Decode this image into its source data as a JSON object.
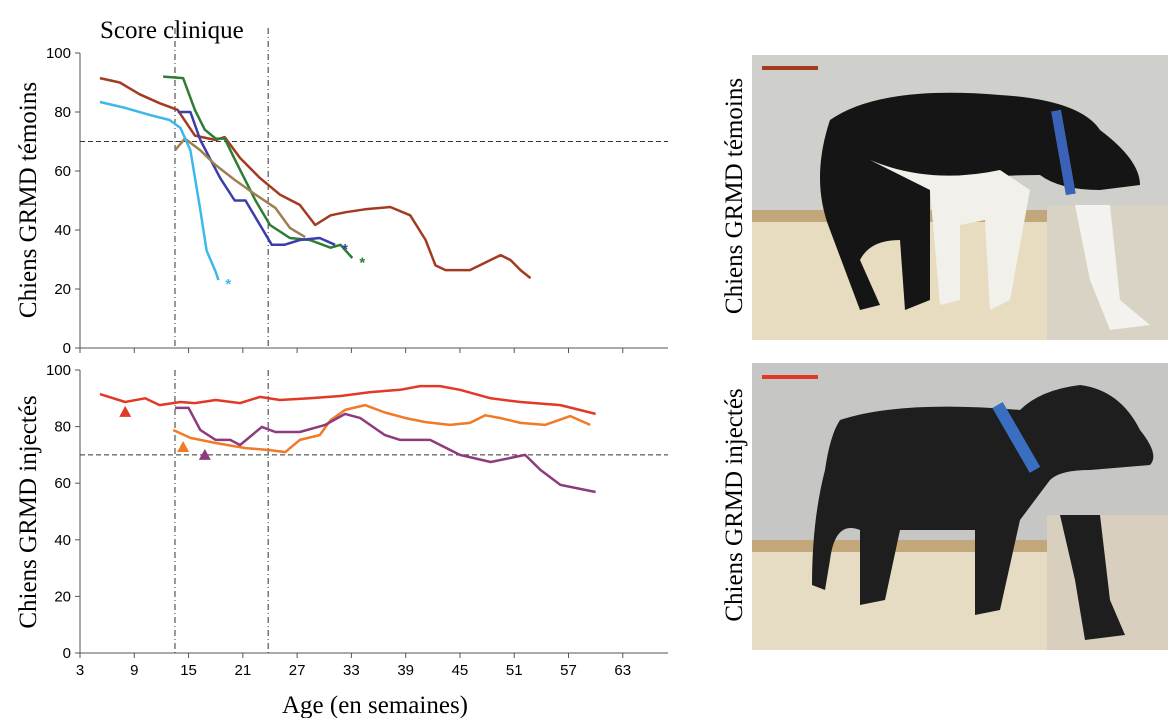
{
  "chart_data": [
    {
      "type": "line",
      "title": "Score clinique",
      "y_label": "Chiens GRMD témoins",
      "xlim": [
        3,
        68
      ],
      "ylim": [
        0,
        100
      ],
      "yticks": [
        0,
        20,
        40,
        60,
        80,
        100
      ],
      "reference_lines": {
        "x": [
          13.5,
          23.8
        ],
        "y": [
          70
        ]
      },
      "series": [
        {
          "color": "#a23b22",
          "x": [
            5.2,
            7.4,
            9.6,
            11.8,
            13.8,
            15.7,
            18,
            19,
            20.7,
            22.9,
            25.1,
            27.3,
            29,
            30.7,
            32.3,
            34.5,
            37.3,
            39.5,
            41.2,
            42.3,
            43.4,
            46.1,
            49.5,
            50.6,
            51.7,
            52.8
          ],
          "values": [
            91.5,
            90,
            86,
            83,
            80.7,
            72,
            70.5,
            71.5,
            64.4,
            57.6,
            52,
            48.5,
            41.7,
            45,
            46,
            47,
            47.8,
            45,
            36.6,
            28,
            26.4,
            26.4,
            31.5,
            29.8,
            26.4,
            23.7
          ]
        },
        {
          "color": "#2e7d32",
          "x": [
            12.2,
            14.4,
            15.7,
            16.8,
            18,
            19,
            20.1,
            22.4,
            24,
            26.2,
            28.4,
            30.7,
            31.8,
            33.1
          ],
          "values": [
            92,
            91.5,
            80.7,
            74,
            71,
            71,
            64,
            50,
            41.7,
            37.3,
            36.6,
            34,
            35,
            30.5
          ]
        },
        {
          "color": "#3b3ea8",
          "x": [
            13.8,
            15.2,
            16.3,
            17.4,
            18.5,
            20.1,
            21.3,
            22.9,
            24.2,
            25.6,
            27.3,
            29.5,
            31.2
          ],
          "values": [
            80,
            80,
            70.5,
            64,
            57.6,
            50,
            50,
            41.7,
            35,
            35,
            36.6,
            37.3,
            35
          ]
        },
        {
          "color": "#9c8052",
          "x": [
            13.5,
            14.6,
            16.3,
            18,
            20.1,
            22.4,
            24.6,
            26.2,
            27.9
          ],
          "values": [
            67,
            71,
            67,
            62,
            57,
            52,
            47.5,
            40.7,
            37.6
          ]
        },
        {
          "color": "#3cb8ea",
          "x": [
            5.2,
            8,
            10.7,
            12.9,
            14.1,
            15.2,
            16.3,
            17,
            18,
            18.3
          ],
          "values": [
            83.4,
            81.4,
            79,
            77.3,
            74.6,
            67,
            46.8,
            33,
            25.8,
            23
          ]
        }
      ],
      "annotations": [
        {
          "text": "*",
          "x": 34.2,
          "y": 32,
          "color": "#2e7d32"
        },
        {
          "text": "*",
          "x": 32.3,
          "y": 36.6,
          "color": "#3b3ea8"
        },
        {
          "text": "*",
          "x": 19.4,
          "y": 24.7,
          "color": "#3cb8ea"
        }
      ]
    },
    {
      "type": "line",
      "y_label": "Chiens GRMD injectés",
      "x_label": "Age (en semaines)",
      "xlim": [
        3,
        68
      ],
      "ylim": [
        0,
        100
      ],
      "yticks": [
        0,
        20,
        40,
        60,
        80,
        100
      ],
      "xticks": [
        3,
        9,
        15,
        21,
        27,
        33,
        39,
        45,
        51,
        57,
        63
      ],
      "reference_lines": {
        "x": [
          13.5,
          23.8
        ],
        "y": [
          70
        ]
      },
      "series": [
        {
          "color": "#e03a26",
          "x": [
            5.2,
            8,
            10.2,
            11.8,
            14.1,
            15.7,
            18,
            20.7,
            22.9,
            25.1,
            28.4,
            31.8,
            35.1,
            38.4,
            40.6,
            42.8,
            45,
            48.4,
            51.7,
            56.1,
            60
          ],
          "values": [
            91.5,
            88.7,
            90,
            87.6,
            88.7,
            88.3,
            89.4,
            88.3,
            90.5,
            89.4,
            90,
            90.8,
            92.2,
            93,
            94.3,
            94.3,
            93,
            90,
            88.7,
            87.6,
            84.5
          ]
        },
        {
          "color": "#f07a26",
          "x": [
            13.3,
            15.2,
            18,
            21.3,
            24,
            25.7,
            27.3,
            29.5,
            30.7,
            32.3,
            34.5,
            36.7,
            39,
            41.2,
            43.9,
            46.1,
            47.8,
            49.5,
            51.7,
            54.4,
            57.2,
            59.4
          ],
          "values": [
            78.8,
            76,
            74.2,
            72.4,
            71.7,
            71,
            75.3,
            77,
            82.3,
            85.9,
            87.6,
            85,
            83,
            81.6,
            80.6,
            81.3,
            84,
            83,
            81.3,
            80.6,
            83.7,
            80.6
          ]
        },
        {
          "color": "#8e3a7e",
          "x": [
            13.5,
            15,
            16.3,
            18,
            19.6,
            20.7,
            23.1,
            24.6,
            27.3,
            30.1,
            32.3,
            34,
            36.7,
            38.4,
            41.7,
            45,
            48.4,
            52.2,
            53.9,
            56.1,
            60
          ],
          "values": [
            86.6,
            86.6,
            78.8,
            75.3,
            75.3,
            73.5,
            79.9,
            78.1,
            78.1,
            80.6,
            84.5,
            83,
            77,
            75.3,
            75.3,
            70,
            67.5,
            70,
            64.7,
            59.4,
            56.9
          ]
        }
      ],
      "markers": [
        {
          "x": 8,
          "y": 85.2,
          "color": "#e03a26"
        },
        {
          "x": 14.4,
          "y": 72.8,
          "color": "#f07a26"
        },
        {
          "x": 16.8,
          "y": 70,
          "color": "#8e3a7e"
        }
      ]
    }
  ],
  "photos": [
    {
      "label": "Chiens GRMD témoins",
      "scale_bar_color": "#a23b22"
    },
    {
      "label": "Chiens GRMD injectés",
      "scale_bar_color": "#e03a26"
    }
  ]
}
